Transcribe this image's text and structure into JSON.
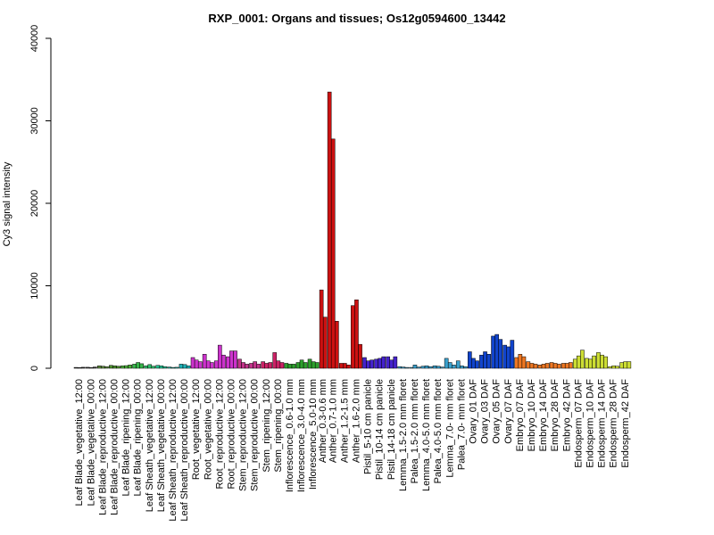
{
  "chart_data": {
    "type": "bar",
    "title": "RXP_0001: Organs and tissues; Os12g0594600_13442",
    "xlabel": "",
    "ylabel": "Cy3 signal intensity",
    "ylim": [
      0,
      40000
    ],
    "yticks": [
      0,
      10000,
      20000,
      30000,
      40000
    ],
    "groups": [
      {
        "label": "Leaf Blade_vegetative_12:00",
        "color": "#2a2a2a",
        "values": [
          100,
          80,
          120
        ]
      },
      {
        "label": "Leaf Blade_vegetative_00:00",
        "color": "#3a3a3a",
        "values": [
          120,
          90,
          150
        ]
      },
      {
        "label": "Leaf Blade_reproductive_12:00",
        "color": "#5f8b3f",
        "values": [
          300,
          250,
          200
        ]
      },
      {
        "label": "Leaf Blade_reproductive_00:00",
        "color": "#4c8f2e",
        "values": [
          350,
          300,
          250
        ]
      },
      {
        "label": "Leaf Blade_ripening_12:00",
        "color": "#4caf3a",
        "values": [
          300,
          320,
          400
        ]
      },
      {
        "label": "Leaf Blade_ripening_00:00",
        "color": "#36b54a",
        "values": [
          500,
          700,
          550
        ]
      },
      {
        "label": "Leaf Sheath_vegetative_12:00",
        "color": "#2fbf6b",
        "values": [
          300,
          450,
          250
        ]
      },
      {
        "label": "Leaf Sheath_vegetative_00:00",
        "color": "#22c08f",
        "values": [
          350,
          300,
          200
        ]
      },
      {
        "label": "Leaf Sheath_reproductive_12:00",
        "color": "#1fb8a8",
        "values": [
          150,
          100,
          120
        ]
      },
      {
        "label": "Leaf Sheath_reproductive_00:00",
        "color": "#20b3b8",
        "values": [
          500,
          450,
          300
        ]
      },
      {
        "label": "Root_vegetative_12:00",
        "color": "#cc33cc",
        "values": [
          1300,
          1000,
          800
        ]
      },
      {
        "label": "Root_vegetative_00:00",
        "color": "#cc33cc",
        "values": [
          1700,
          900,
          700
        ]
      },
      {
        "label": "Root_reproductive_12:00",
        "color": "#cc33cc",
        "values": [
          900,
          2800,
          1600
        ]
      },
      {
        "label": "Root_reproductive_00:00",
        "color": "#cc33cc",
        "values": [
          1400,
          2100,
          2100
        ]
      },
      {
        "label": "Stem_reproductive_12:00",
        "color": "#c2338a",
        "values": [
          1100,
          700,
          500
        ]
      },
      {
        "label": "Stem_reproductive_00:00",
        "color": "#c2338a",
        "values": [
          600,
          800,
          500
        ]
      },
      {
        "label": "Stem_ripening_12:00",
        "color": "#cc2266",
        "values": [
          800,
          600,
          700
        ]
      },
      {
        "label": "Stem_ripening_00:00",
        "color": "#cc2266",
        "values": [
          1900,
          900,
          700
        ]
      },
      {
        "label": "Inflorescence_0.6-1.0 mm",
        "color": "#2ca02c",
        "values": [
          600,
          500,
          500
        ]
      },
      {
        "label": "Inflorescence_3.0-4.0 mm",
        "color": "#2ca02c",
        "values": [
          700,
          1000,
          700
        ]
      },
      {
        "label": "Inflorescence_5.0-10 mm",
        "color": "#2ca02c",
        "values": [
          1100,
          800,
          700
        ]
      },
      {
        "label": "Anther_0.3-0.6 mm",
        "color": "#cc1111",
        "values": [
          9500,
          6200
        ]
      },
      {
        "label": "Anther_0.7-1.0 mm",
        "color": "#cc1111",
        "values": [
          33500,
          27800,
          5700
        ]
      },
      {
        "label": "Anther_1.2-1.5 mm",
        "color": "#cc1111",
        "values": [
          600,
          600,
          400
        ]
      },
      {
        "label": "Anther_1.6-2.0 mm",
        "color": "#cc1111",
        "values": [
          7600,
          8300,
          2900
        ]
      },
      {
        "label": "Pistil_5-10 cm panicle",
        "color": "#4422cc",
        "values": [
          1300,
          900,
          1000
        ]
      },
      {
        "label": "Pistil_10-14 cm panicle",
        "color": "#4422cc",
        "values": [
          1100,
          1200,
          1400
        ]
      },
      {
        "label": "Pistil_14-18 cm panicle",
        "color": "#4422cc",
        "values": [
          1400,
          1000,
          1400
        ]
      },
      {
        "label": "Lemma_1.5-2.0 mm floret",
        "color": "#3aa0cc",
        "values": [
          200,
          150,
          100
        ]
      },
      {
        "label": "Palea_1.5-2.0 mm floret",
        "color": "#3aa0cc",
        "values": [
          100,
          400,
          150
        ]
      },
      {
        "label": "Lemma_4.0-5.0 mm floret",
        "color": "#3aa0cc",
        "values": [
          250,
          300,
          200
        ]
      },
      {
        "label": "Palea_4.0-5.0 mm floret",
        "color": "#3aa0cc",
        "values": [
          300,
          250,
          150
        ]
      },
      {
        "label": "Lemma_7.0- mm floret",
        "color": "#3aa0cc",
        "values": [
          1200,
          700,
          400
        ]
      },
      {
        "label": "Palea_7.0- mm floret",
        "color": "#3aa0cc",
        "values": [
          900,
          300,
          200
        ]
      },
      {
        "label": "Ovary_01 DAF",
        "color": "#1144cc",
        "values": [
          2000,
          1200,
          900
        ]
      },
      {
        "label": "Ovary_03 DAF",
        "color": "#1144cc",
        "values": [
          1600,
          2000,
          1700
        ]
      },
      {
        "label": "Ovary_05 DAF",
        "color": "#1144cc",
        "values": [
          3900,
          4100,
          3500
        ]
      },
      {
        "label": "Ovary_07 DAF",
        "color": "#1144cc",
        "values": [
          2800,
          2600,
          3400
        ]
      },
      {
        "label": "Embryo_07 DAF",
        "color": "#ee7722",
        "values": [
          1300,
          1700,
          1400
        ]
      },
      {
        "label": "Embryo_10 DAF",
        "color": "#ee7722",
        "values": [
          800,
          600,
          500
        ]
      },
      {
        "label": "Embryo_14 DAF",
        "color": "#ee7722",
        "values": [
          400,
          500,
          600
        ]
      },
      {
        "label": "Embryo_28 DAF",
        "color": "#ee7722",
        "values": [
          700,
          600,
          500
        ]
      },
      {
        "label": "Embryo_42 DAF",
        "color": "#ee7722",
        "values": [
          600,
          600,
          700
        ]
      },
      {
        "label": "Endosperm_07 DAF",
        "color": "#ccdd33",
        "values": [
          1100,
          1500,
          2200
        ]
      },
      {
        "label": "Endosperm_10 DAF",
        "color": "#ccdd33",
        "values": [
          1200,
          1100,
          1500
        ]
      },
      {
        "label": "Endosperm_14 DAF",
        "color": "#ccdd33",
        "values": [
          1900,
          1600,
          1400
        ]
      },
      {
        "label": "Endosperm_28 DAF",
        "color": "#ccdd33",
        "values": [
          200,
          300,
          250
        ]
      },
      {
        "label": "Endosperm_42 DAF",
        "color": "#ccdd33",
        "values": [
          700,
          800,
          800
        ]
      }
    ]
  }
}
